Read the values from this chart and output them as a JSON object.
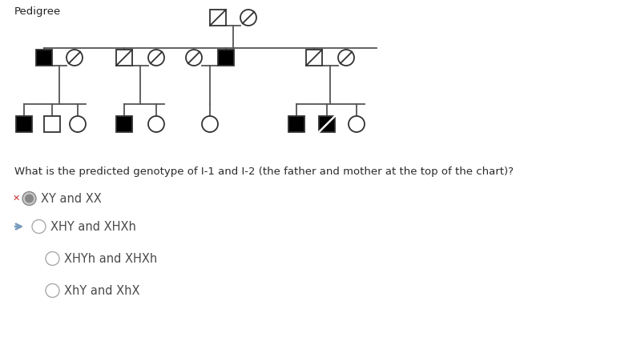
{
  "title": "Pedigree",
  "question": "What is the predicted genotype of I-1 and I-2 (the father and mother at the top of the chart)?",
  "options": [
    {
      "text": "XY and XX",
      "selected": true,
      "wrong": true,
      "correct_arrow": false
    },
    {
      "text": "XHY and XHXh",
      "selected": false,
      "wrong": false,
      "correct_arrow": true
    },
    {
      "text": "XHYh and XHXh",
      "selected": false,
      "wrong": false,
      "correct_arrow": false
    },
    {
      "text": "XhY and XhX",
      "selected": false,
      "wrong": false,
      "correct_arrow": false
    }
  ],
  "bg_color": "#ffffff",
  "text_color": "#2a2a2a",
  "option_color": "#4a4a4a",
  "x_color": "#cc3333",
  "arrow_color": "#7799bb",
  "pedigree_lw": 1.3,
  "symbol_lw": 1.3
}
